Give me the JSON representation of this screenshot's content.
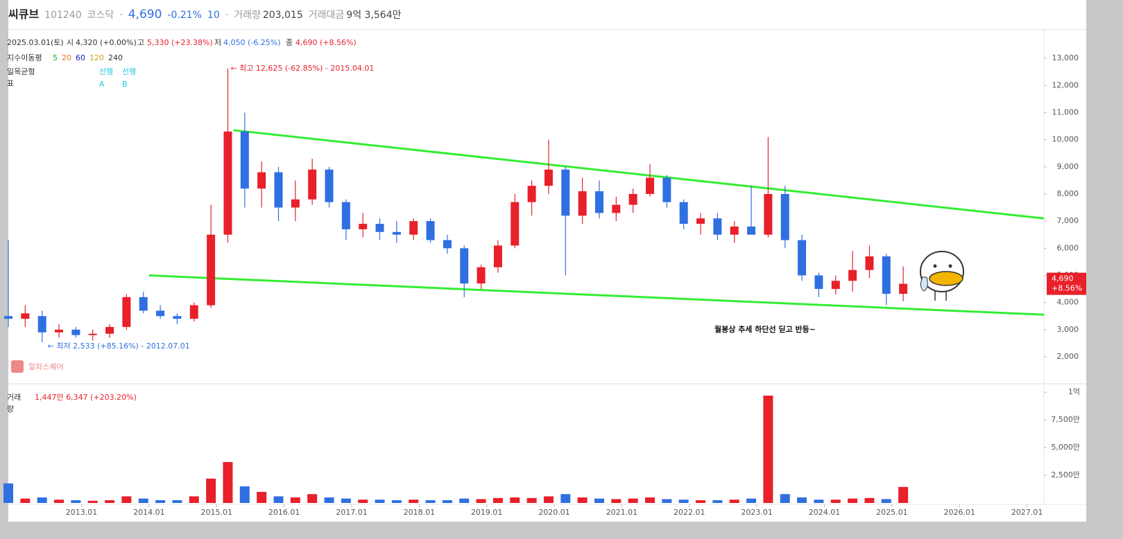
{
  "header": {
    "name": "씨큐브",
    "code": "101240",
    "market": "코스닥",
    "price": "4,690",
    "change": "-0.21%",
    "tick": "10",
    "volume_label": "거래량",
    "volume": "203,015",
    "amount_label": "거래대금",
    "amount": "9억 3,564만"
  },
  "ohlc_info": {
    "date": "2025.03.01(토)",
    "open_label": "시",
    "open": "4,320 (+0.00%)",
    "high_label": "고",
    "high": "5,330 (+23.38%)",
    "low_label": "저",
    "low": "4,050 (-6.25%)",
    "close_label": "종",
    "close": "4,690 (+8.56%)"
  },
  "indicators": {
    "ma_label": "지수이동평",
    "ma_periods": [
      "5",
      "20",
      "60",
      "120",
      "240"
    ],
    "ma_colors": [
      "#22aa22",
      "#e07020",
      "#1a1acc",
      "#d4a020",
      "#333333"
    ],
    "ichimoku_label_1": "일목균형",
    "ichimoku_label_2": "표",
    "span_labels": [
      "선행",
      "선행"
    ],
    "span_names": [
      "A",
      "B"
    ]
  },
  "watermark": "알파스퀘어",
  "chart_data": {
    "type": "candlestick",
    "candles": {
      "x": [
        "2011.12",
        "2012.03",
        "2012.06",
        "2012.09",
        "2012.12",
        "2013.03",
        "2013.06",
        "2013.09",
        "2013.12",
        "2014.03",
        "2014.06",
        "2014.09",
        "2014.12",
        "2015.03",
        "2015.06",
        "2015.09",
        "2015.12",
        "2016.03",
        "2016.06",
        "2016.09",
        "2016.12",
        "2017.03",
        "2017.06",
        "2017.09",
        "2017.12",
        "2018.03",
        "2018.06",
        "2018.09",
        "2018.12",
        "2019.03",
        "2019.06",
        "2019.09",
        "2019.12",
        "2020.03",
        "2020.06",
        "2020.09",
        "2020.12",
        "2021.03",
        "2021.06",
        "2021.09",
        "2021.12",
        "2022.03",
        "2022.06",
        "2022.09",
        "2022.12",
        "2023.03",
        "2023.06",
        "2023.09",
        "2023.12",
        "2024.03",
        "2024.06",
        "2024.09",
        "2024.12",
        "2025.03"
      ],
      "open": [
        3500,
        3400,
        3500,
        2900,
        3000,
        2800,
        2850,
        3100,
        4200,
        3700,
        3500,
        3400,
        3900,
        6500,
        10300,
        8200,
        8800,
        7500,
        7800,
        8900,
        7700,
        6700,
        6900,
        6600,
        6500,
        7000,
        6300,
        6000,
        4700,
        5300,
        6100,
        7700,
        8300,
        8900,
        7200,
        8100,
        7300,
        7600,
        8000,
        8600,
        7700,
        6900,
        7100,
        6500,
        6800,
        6500,
        8000,
        6300,
        5000,
        4500,
        4800,
        5200,
        5700,
        4320
      ],
      "high": [
        6300,
        3900,
        3700,
        3200,
        3100,
        3000,
        3200,
        4300,
        4400,
        3900,
        3600,
        4000,
        7600,
        12625,
        11000,
        9200,
        9000,
        8500,
        9300,
        9000,
        7800,
        7300,
        7100,
        7000,
        7100,
        7100,
        6500,
        6100,
        5400,
        6300,
        8000,
        8500,
        10000,
        9000,
        8600,
        8500,
        7900,
        8200,
        9100,
        8700,
        7800,
        7300,
        7300,
        7000,
        8300,
        10100,
        8300,
        6500,
        5100,
        5000,
        5900,
        6100,
        5800,
        5330
      ],
      "low": [
        3100,
        3100,
        2533,
        2700,
        2700,
        2600,
        2700,
        3000,
        3600,
        3400,
        3200,
        3300,
        3800,
        6200,
        7500,
        7500,
        7000,
        7000,
        7600,
        7500,
        6300,
        6400,
        6300,
        6200,
        6300,
        6200,
        5800,
        4200,
        4500,
        5100,
        6000,
        7200,
        8000,
        5000,
        6900,
        7100,
        7000,
        7300,
        7900,
        7500,
        6700,
        6500,
        6300,
        6200,
        6500,
        6400,
        6000,
        4800,
        4200,
        4300,
        4400,
        4900,
        3900,
        4050
      ],
      "close": [
        3400,
        3600,
        2900,
        3000,
        2800,
        2850,
        3100,
        4200,
        3700,
        3500,
        3400,
        3900,
        6500,
        10300,
        8200,
        8800,
        7500,
        7800,
        8900,
        7700,
        6700,
        6900,
        6600,
        6500,
        7000,
        6300,
        6000,
        4700,
        5300,
        6100,
        7700,
        8300,
        8900,
        7200,
        8100,
        7300,
        7600,
        8000,
        8600,
        7700,
        6900,
        7100,
        6500,
        6800,
        6500,
        8000,
        6300,
        5000,
        4500,
        4800,
        5200,
        5700,
        4320,
        4690
      ]
    },
    "up_color": "#e8202a",
    "down_color": "#2f6fe0",
    "xlim": [
      "2011.12",
      "2027.04"
    ],
    "xticks": [
      "2013.01",
      "2014.01",
      "2015.01",
      "2016.01",
      "2017.01",
      "2018.01",
      "2019.01",
      "2020.01",
      "2021.01",
      "2022.01",
      "2023.01",
      "2024.01",
      "2025.01",
      "2026.01",
      "2027.01"
    ],
    "ylim": [
      1030,
      14050
    ],
    "yticks": [
      {
        "value": 2000,
        "label": "2,000"
      },
      {
        "value": 3000,
        "label": "3,000"
      },
      {
        "value": 4000,
        "label": "4,000"
      },
      {
        "value": 5000,
        "label": "5,000"
      },
      {
        "value": 6000,
        "label": "6,000"
      },
      {
        "value": 7000,
        "label": "7,000"
      },
      {
        "value": 8000,
        "label": "8,000"
      },
      {
        "value": 9000,
        "label": "9,000"
      },
      {
        "value": 10000,
        "label": "10,000"
      },
      {
        "value": 11000,
        "label": "11,000"
      },
      {
        "value": 12000,
        "label": "12,000"
      },
      {
        "value": 13000,
        "label": "13,000"
      }
    ],
    "trendlines": {
      "color": "#33ee33",
      "lines": [
        {
          "x": [
            "2015.04",
            "2027.04"
          ],
          "y": [
            10350,
            7100
          ]
        },
        {
          "x": [
            "2014.01",
            "2027.04"
          ],
          "y": [
            5000,
            3550
          ]
        }
      ]
    },
    "annotations": {
      "high": "← 최고 12,625 (-62.85%) - 2015.04.01",
      "low": "← 최저 2,533 (+85.16%) - 2012.07.01",
      "comment": "월봉상 추세 하단선 딛고 반등~"
    },
    "price_tag": {
      "price": "4,690",
      "change": "+8.56%",
      "value": 4690
    },
    "volume": {
      "label_1": "거래",
      "label_2": "량",
      "info": "1,447만 6,347  (+203.20%)",
      "values": [
        17700000,
        4000000,
        5000000,
        3000000,
        2500000,
        2000000,
        2500000,
        6000000,
        4000000,
        2500000,
        2500000,
        6000000,
        22000000,
        37000000,
        15000000,
        10000000,
        6000000,
        5000000,
        8000000,
        5000000,
        4000000,
        3000000,
        3000000,
        2500000,
        3000000,
        2500000,
        2500000,
        4000000,
        3500000,
        4500000,
        5000000,
        4500000,
        6000000,
        8000000,
        5000000,
        4000000,
        3500000,
        4000000,
        5000000,
        3500000,
        3000000,
        2500000,
        2500000,
        3000000,
        4000000,
        97000000,
        8000000,
        5000000,
        3000000,
        3000000,
        4000000,
        4500000,
        3500000,
        14476347
      ],
      "ylim": [
        0,
        107000000
      ],
      "yticks": [
        {
          "value": 25000000,
          "label": "2,500만"
        },
        {
          "value": 50000000,
          "label": "5,000만"
        },
        {
          "value": 75000000,
          "label": "7,500만"
        },
        {
          "value": 100000000,
          "label": "1억"
        }
      ]
    }
  }
}
